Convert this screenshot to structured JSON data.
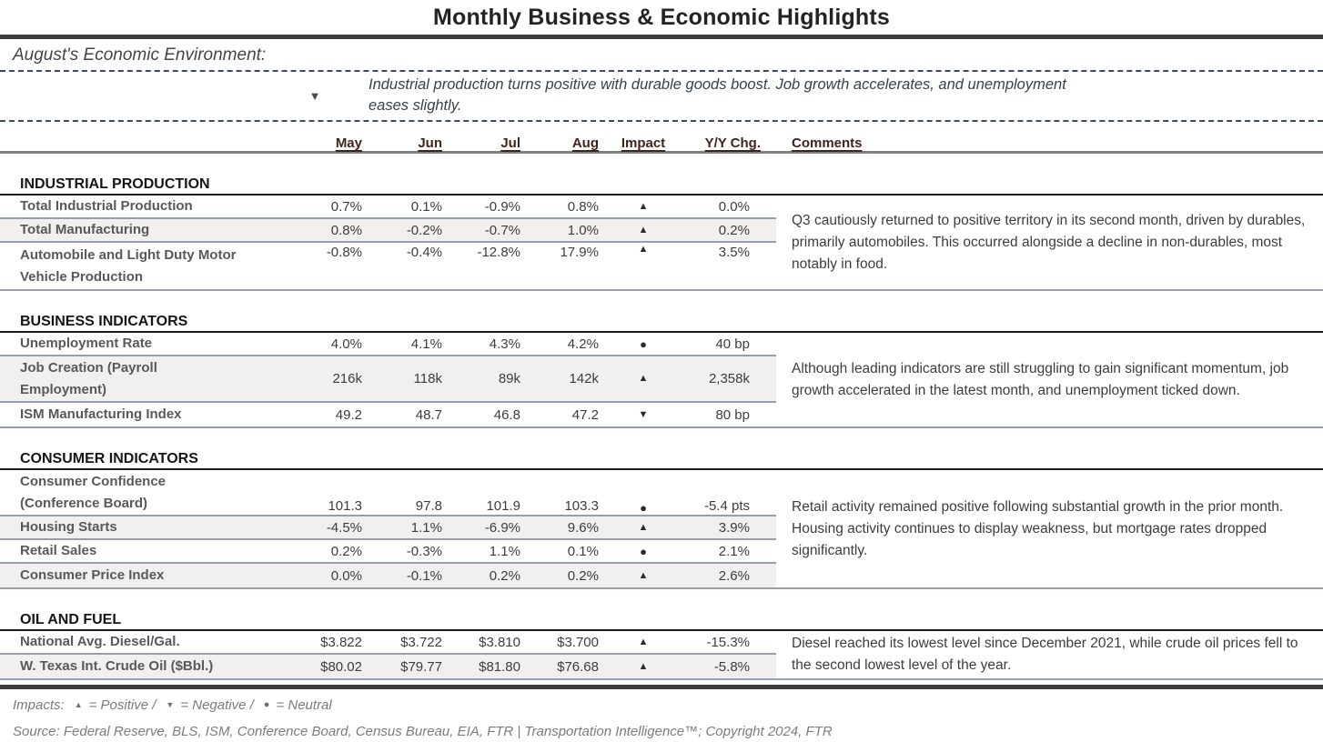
{
  "title": "Monthly Business & Economic Highlights",
  "intro": {
    "heading": "August's Economic Environment:",
    "bullet_text": "Industrial production turns positive with durable goods boost. Job growth accelerates, and unemployment eases slightly."
  },
  "icons": {
    "up": "▲",
    "down": "▼",
    "neutral": "●"
  },
  "colors": {
    "rule_dark": "#3c3c3c",
    "head_color": "#3f241c",
    "row_line": "#95a0ac",
    "row_stripe": "#f1f0ee",
    "dotted": "#3a4a6b",
    "section_line": "#1c1c1c"
  },
  "table": {
    "columns": [
      "May",
      "Jun",
      "Jul",
      "Aug",
      "Impact",
      "Y/Y Chg.",
      "Comments"
    ],
    "sections": [
      {
        "name": "INDUSTRIAL PRODUCTION",
        "comment": "Q3 cautiously returned to positive territory in its second month, driven by durables, primarily automobiles. This occurred alongside a decline in non-durables, most notably in food.",
        "rows": [
          {
            "label": "Total Industrial Production",
            "values": [
              "0.7%",
              "0.1%",
              "-0.9%",
              "0.8%"
            ],
            "impact": "up",
            "yy": "0.0%"
          },
          {
            "label": "Total Manufacturing",
            "values": [
              "0.8%",
              "-0.2%",
              "-0.7%",
              "1.0%"
            ],
            "impact": "up",
            "yy": "0.2%"
          },
          {
            "label": "Automobile and Light Duty Motor Vehicle Production",
            "values": [
              "-0.8%",
              "-0.4%",
              "-12.8%",
              "17.9%"
            ],
            "impact": "up",
            "yy": "3.5%"
          }
        ]
      },
      {
        "name": "BUSINESS INDICATORS",
        "comment": "Although leading indicators are still struggling to gain significant momentum, job growth accelerated in the latest month, and unemployment ticked down.",
        "rows": [
          {
            "label": "Unemployment Rate",
            "values": [
              "4.0%",
              "4.1%",
              "4.3%",
              "4.2%"
            ],
            "impact": "neutral",
            "yy": "40 bp"
          },
          {
            "label": "Job Creation (Payroll Employment)",
            "values": [
              "216k",
              "118k",
              "89k",
              "142k"
            ],
            "impact": "up",
            "yy": "2,358k"
          },
          {
            "label": "ISM Manufacturing Index",
            "values": [
              "49.2",
              "48.7",
              "46.8",
              "47.2"
            ],
            "impact": "down",
            "yy": "80 bp"
          }
        ]
      },
      {
        "name": "CONSUMER INDICATORS",
        "comment": "Retail activity remained positive following substantial growth in the prior month. Housing activity continues to display weakness, but mortgage rates dropped significantly.",
        "rows": [
          {
            "label": "Consumer Confidence (Conference Board)",
            "values": [
              "101.3",
              "97.8",
              "101.9",
              "103.3"
            ],
            "impact": "neutral",
            "yy": "-5.4 pts"
          },
          {
            "label": "Housing Starts",
            "values": [
              "-4.5%",
              "1.1%",
              "-6.9%",
              "9.6%"
            ],
            "impact": "up",
            "yy": "3.9%"
          },
          {
            "label": "Retail Sales",
            "values": [
              "0.2%",
              "-0.3%",
              "1.1%",
              "0.1%"
            ],
            "impact": "neutral",
            "yy": "2.1%"
          },
          {
            "label": "Consumer Price Index",
            "values": [
              "0.0%",
              "-0.1%",
              "0.2%",
              "0.2%"
            ],
            "impact": "up",
            "yy": "2.6%"
          }
        ]
      },
      {
        "name": "OIL AND FUEL",
        "comment": "Diesel reached its lowest level since December 2021, while crude oil prices fell to the second lowest level of the year.",
        "rows": [
          {
            "label": "National Avg. Diesel/Gal.",
            "values": [
              "$3.822",
              "$3.722",
              "$3.810",
              "$3.700"
            ],
            "impact": "up",
            "yy": "-15.3%"
          },
          {
            "label": "W. Texas Int. Crude Oil ($Bbl.)",
            "values": [
              "$80.02",
              "$79.77",
              "$81.80",
              "$76.68"
            ],
            "impact": "up",
            "yy": "-5.8%"
          }
        ]
      }
    ]
  },
  "footer": {
    "impacts_label": "Impacts:",
    "legend": [
      {
        "icon": "up",
        "label": "= Positive /"
      },
      {
        "icon": "down",
        "label": "= Negative /"
      },
      {
        "icon": "neutral",
        "label": "= Neutral"
      }
    ],
    "source": "Source: Federal Reserve, BLS, ISM, Conference Board, Census Bureau, EIA, FTR | Transportation Intelligence™; Copyright 2024, FTR"
  }
}
